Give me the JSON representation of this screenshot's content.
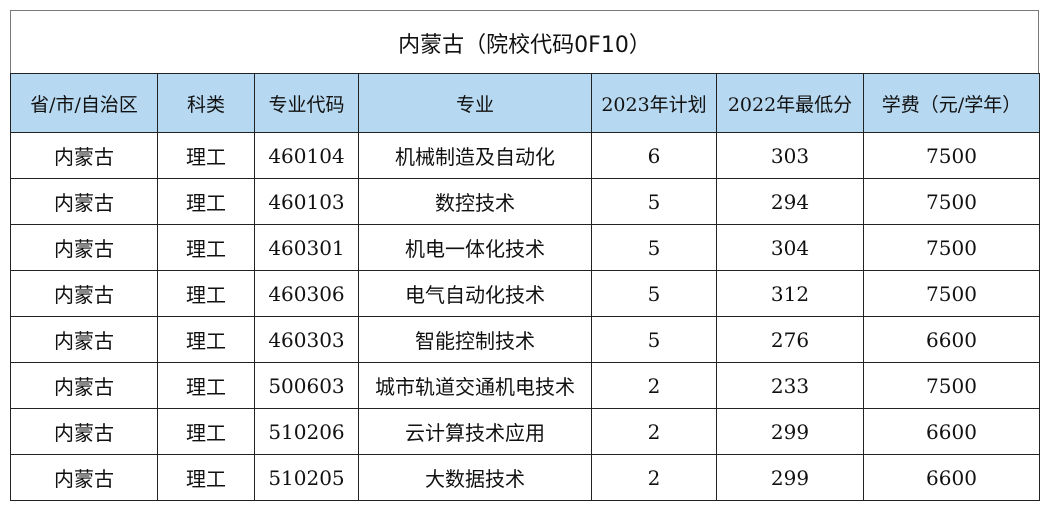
{
  "title": "内蒙古（院校代码0F10）",
  "headers": [
    "省/市/自治区",
    "科类",
    "专业代码",
    "专业",
    "2023年计划",
    "2022年最低分",
    "学费（元/学年）"
  ],
  "rows": [
    [
      "内蒙古",
      "理工",
      "460104",
      "机械制造及自动化",
      "6",
      "303",
      "7500"
    ],
    [
      "内蒙古",
      "理工",
      "460103",
      "数控技术",
      "5",
      "294",
      "7500"
    ],
    [
      "内蒙古",
      "理工",
      "460301",
      "机电一体化技术",
      "5",
      "304",
      "7500"
    ],
    [
      "内蒙古",
      "理工",
      "460306",
      "电气自动化技术",
      "5",
      "312",
      "7500"
    ],
    [
      "内蒙古",
      "理工",
      "460303",
      "智能控制技术",
      "5",
      "276",
      "6600"
    ],
    [
      "内蒙古",
      "理工",
      "500603",
      "城市轨道交通机电技术",
      "2",
      "233",
      "7500"
    ],
    [
      "内蒙古",
      "理工",
      "510206",
      "云计算技术应用",
      "2",
      "299",
      "6600"
    ],
    [
      "内蒙古",
      "理工",
      "510205",
      "大数据技术",
      "2",
      "299",
      "6600"
    ]
  ],
  "colors": {
    "header_background": "#b7d8f1",
    "border": "#222222"
  }
}
